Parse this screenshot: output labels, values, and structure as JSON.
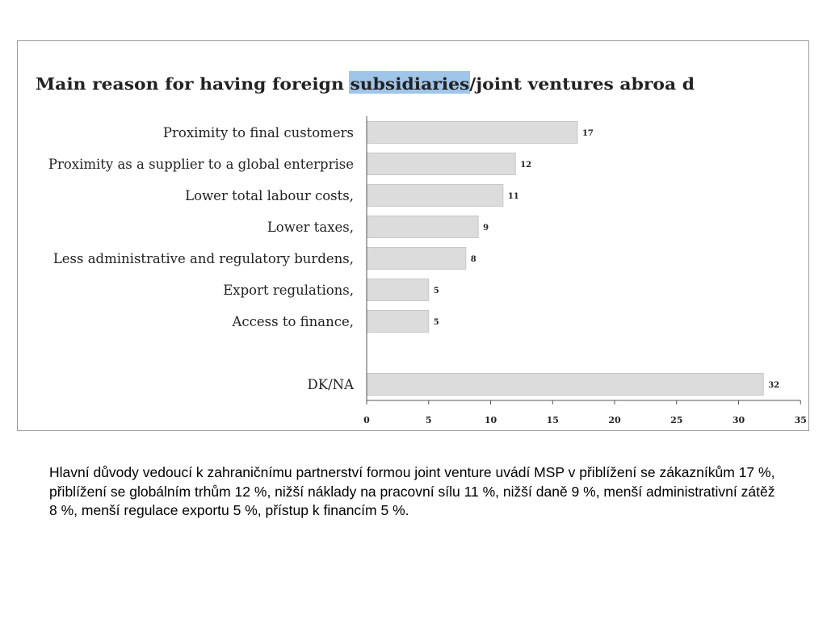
{
  "chart_data": {
    "type": "bar",
    "orientation": "horizontal",
    "title": {
      "before": "Main reason for having foreign ",
      "highlight": "subsidiaries",
      "after": "/joint ventures abroa d"
    },
    "categories": [
      "Proximity to final customers",
      "Proximity as a supplier to a global enterprise",
      "Lower total labour costs,",
      "Lower taxes,",
      "Less administrative and regulatory burdens,",
      "Export regulations,",
      "Access to finance,",
      "DK/NA"
    ],
    "values": [
      17,
      12,
      11,
      9,
      8,
      5,
      5,
      32
    ],
    "value_labels": [
      "17",
      "12",
      "11",
      "9",
      "8",
      "5",
      "5",
      "32"
    ],
    "xlim": [
      0,
      35
    ],
    "x_ticks": [
      "0",
      "5",
      "10",
      "15",
      "20",
      "25",
      "30",
      "35"
    ],
    "xlabel": "",
    "ylabel": "",
    "grid": false,
    "legend": "none",
    "colors": {
      "bar_fill": "#dcdcdc",
      "bar_stroke": "#c8c8c8",
      "highlight": "#9fc5e8",
      "text": "#222222",
      "axis": "#555555"
    }
  },
  "caption": "Hlavní důvody vedoucí k zahraničnímu partnerství formou joint venture uvádí MSP v přiblížení se zákazníkům 17 %, přiblížení se globálním trhům 12 %, nižší náklady na pracovní sílu 11 %, nižší daně 9 %, menší administrativní zátěž 8 %, menší regulace exportu 5 %, přístup k financím 5 %."
}
